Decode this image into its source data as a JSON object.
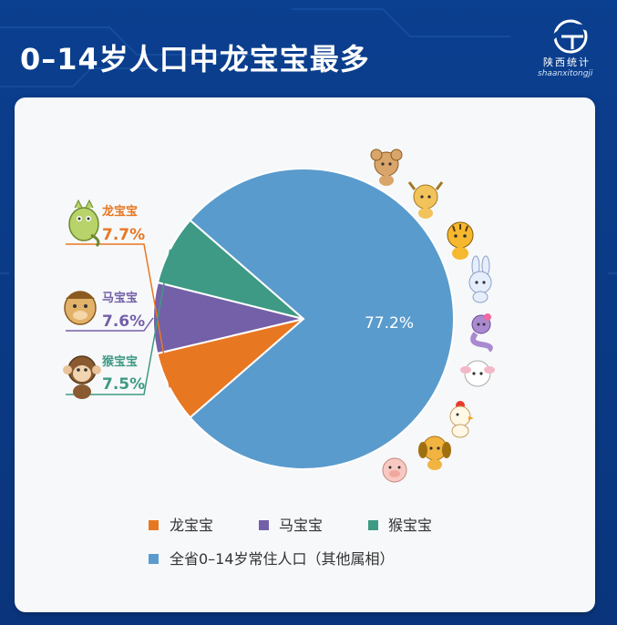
{
  "page": {
    "title": "0–14岁人口中龙宝宝最多",
    "logo": {
      "name_cn": "陕西统计",
      "name_en": "shaanxitongji"
    }
  },
  "chart_data": {
    "type": "pie",
    "title": "0–14岁人口中龙宝宝最多",
    "slices": [
      {
        "label": "龙宝宝",
        "value": 7.7,
        "display": "7.7%",
        "color": "#e87722",
        "icon": "dragon-mascot-icon"
      },
      {
        "label": "马宝宝",
        "value": 7.6,
        "display": "7.6%",
        "color": "#7460a8",
        "icon": "horse-mascot-icon"
      },
      {
        "label": "猴宝宝",
        "value": 7.5,
        "display": "7.5%",
        "color": "#3e9a84",
        "icon": "monkey-mascot-icon"
      },
      {
        "label": "全省0–14岁常住人口（其他属相）",
        "value": 77.2,
        "display": "77.2%",
        "color": "#5a9bcd",
        "icon": ""
      }
    ],
    "legend": {
      "placement": "bottom",
      "entries": [
        "龙宝宝",
        "马宝宝",
        "猴宝宝",
        "全省0–14岁常住人口（其他属相）"
      ]
    },
    "decorations": [
      "rat-mascot-icon",
      "ox-mascot-icon",
      "tiger-mascot-icon",
      "rabbit-mascot-icon",
      "snake-mascot-icon",
      "sheep-mascot-icon",
      "rooster-mascot-icon",
      "dog-mascot-icon",
      "pig-mascot-icon"
    ],
    "colors": {
      "label_orange": "#e87722",
      "label_purple": "#7460a8",
      "label_green": "#3e9a84"
    }
  }
}
